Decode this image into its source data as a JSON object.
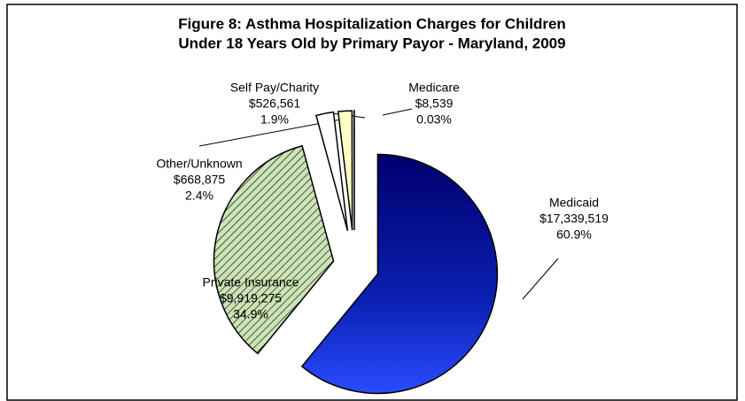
{
  "chart_data": {
    "type": "pie",
    "title": [
      "Figure 8: Asthma Hospitalization Charges for Children",
      "Under 18 Years Old by Primary Payor - Maryland, 2009"
    ],
    "categories": [
      "Medicaid",
      "Private Insurance",
      "Other/Unknown",
      "Self Pay/Charity",
      "Medicare"
    ],
    "values": [
      17339519,
      9919275,
      668875,
      526561,
      8539
    ],
    "value_labels": [
      "$17,339,519",
      "$9,919,275",
      "$668,875",
      "$526,561",
      "$8,539"
    ],
    "percents": [
      60.9,
      34.9,
      2.4,
      1.9,
      0.03
    ],
    "percent_labels": [
      "60.9%",
      "34.9%",
      "2.4%",
      "1.9%",
      "0.03%"
    ],
    "colors": [
      "#0a1fb0",
      "#cfe3b8",
      "#ffffff",
      "#ffffc8",
      "#800080"
    ]
  }
}
